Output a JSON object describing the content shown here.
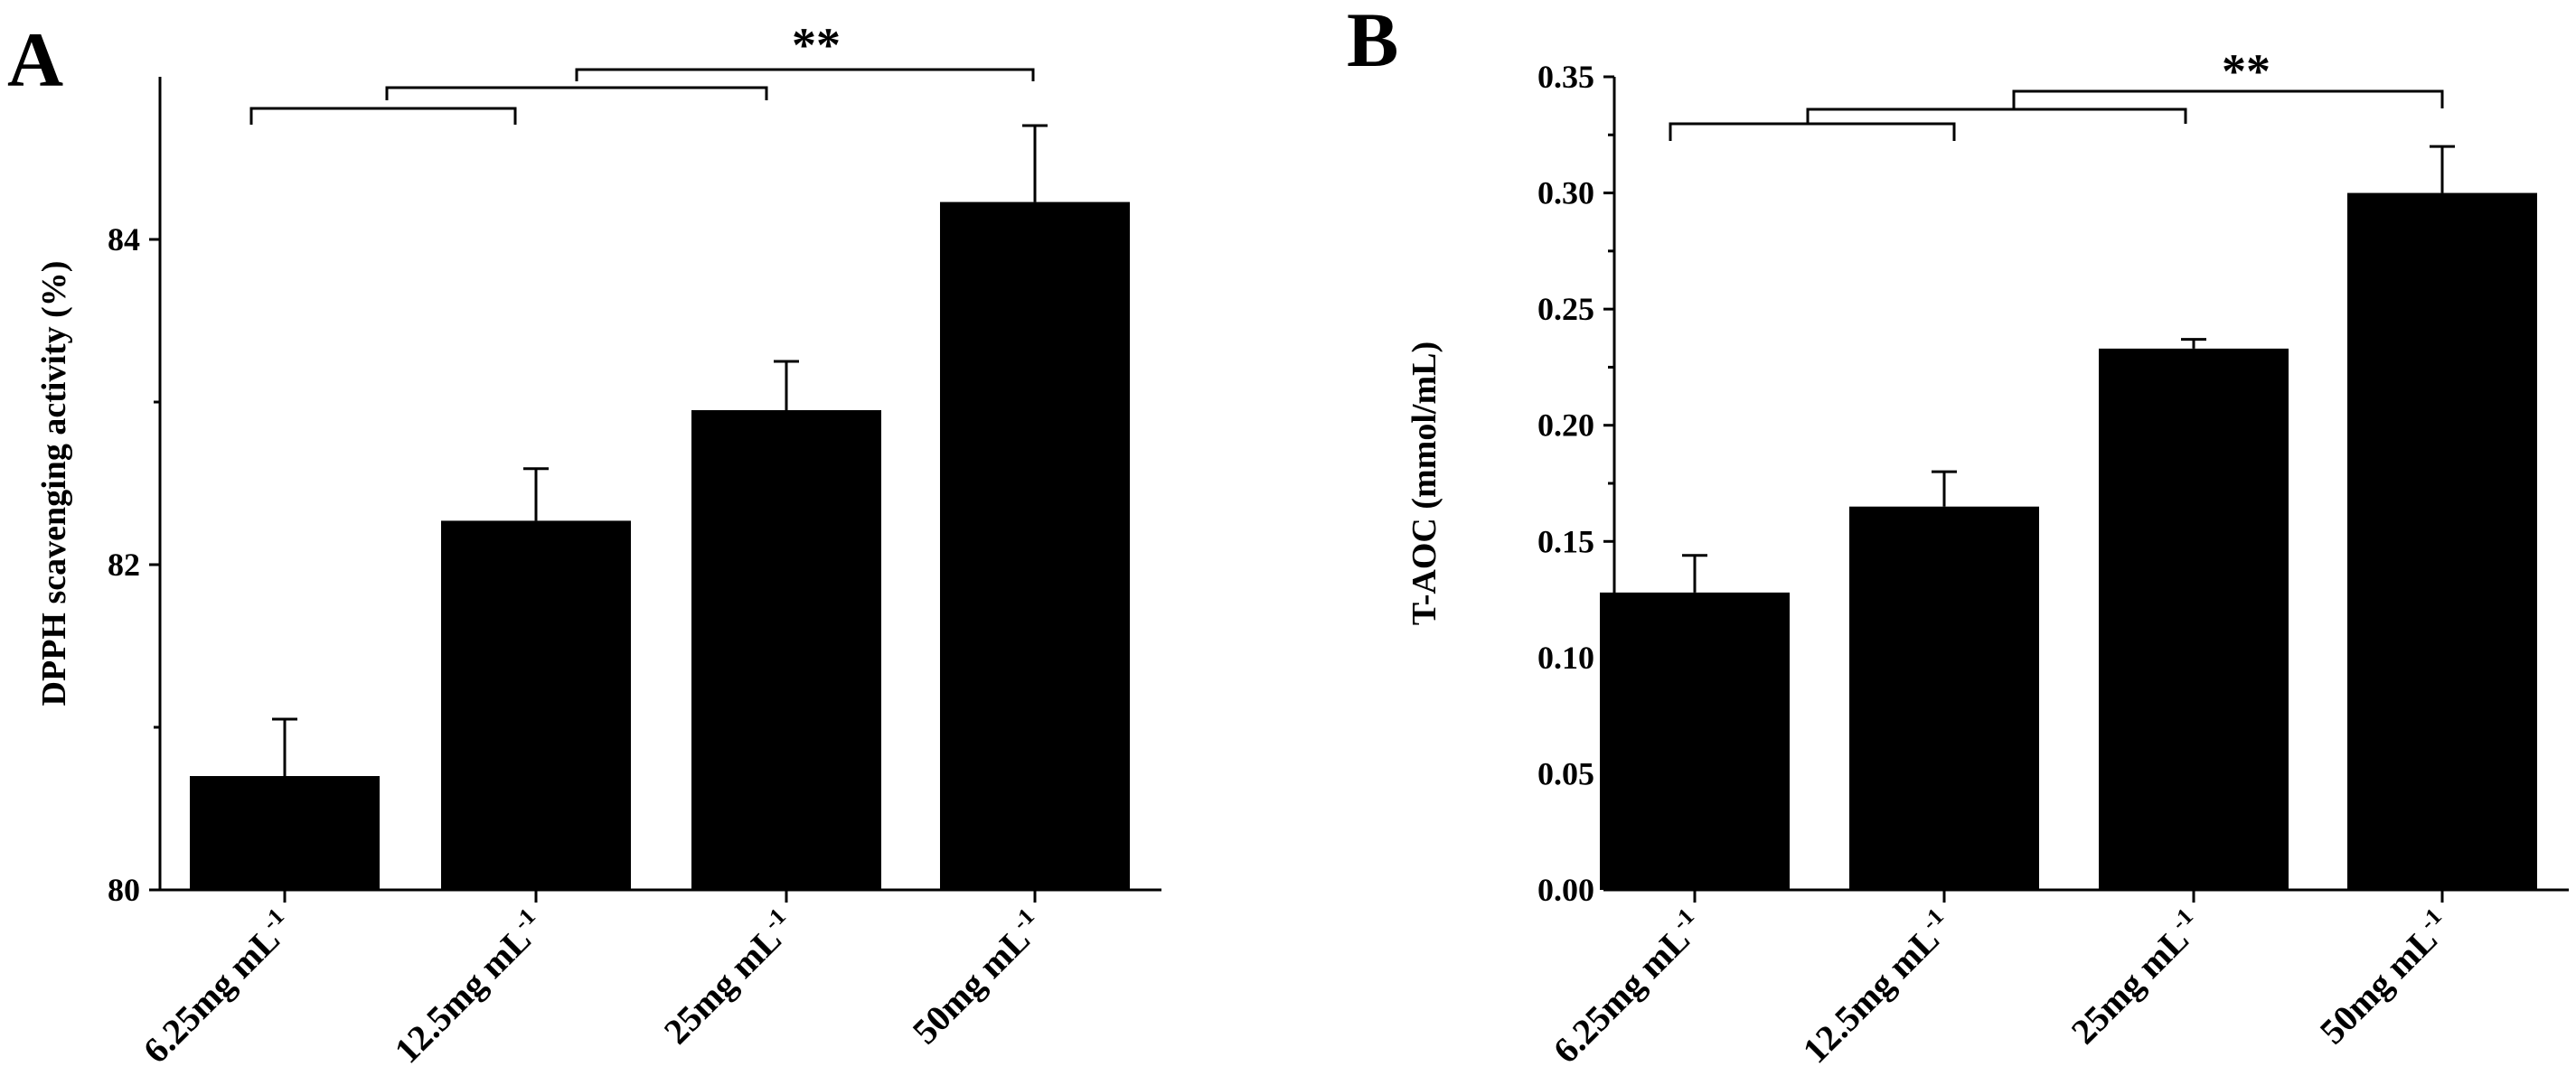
{
  "chart_data": [
    {
      "panel": "A",
      "type": "bar",
      "categories": [
        "6.25mg mL",
        "12.5mg mL",
        "25mg mL",
        "50mg mL"
      ],
      "category_superscript": "-1",
      "values": [
        80.7,
        82.27,
        82.95,
        84.23
      ],
      "errors": [
        0.35,
        0.32,
        0.3,
        0.47
      ],
      "ylabel": "DPPH scavenging activity (%)",
      "xlabel": "",
      "ylim": [
        80,
        85
      ],
      "yticks": [
        80,
        82,
        84
      ],
      "significance": "**",
      "color": "#000000"
    },
    {
      "panel": "B",
      "type": "bar",
      "categories": [
        "6.25mg mL",
        "12.5mg mL",
        "25mg mL",
        "50mg mL"
      ],
      "category_superscript": "-1",
      "values": [
        0.128,
        0.165,
        0.233,
        0.3
      ],
      "errors": [
        0.016,
        0.015,
        0.004,
        0.02
      ],
      "ylabel": "T-AOC (mmol/mL)",
      "xlabel": "",
      "ylim": [
        0,
        0.35
      ],
      "yticks": [
        0.0,
        0.05,
        0.1,
        0.15,
        0.2,
        0.25,
        0.3,
        0.35
      ],
      "ytick_labels": [
        "0.00",
        "0.05",
        "0.10",
        "0.15",
        "0.20",
        "0.25",
        "0.30",
        "0.35"
      ],
      "significance": "**",
      "color": "#000000"
    }
  ]
}
